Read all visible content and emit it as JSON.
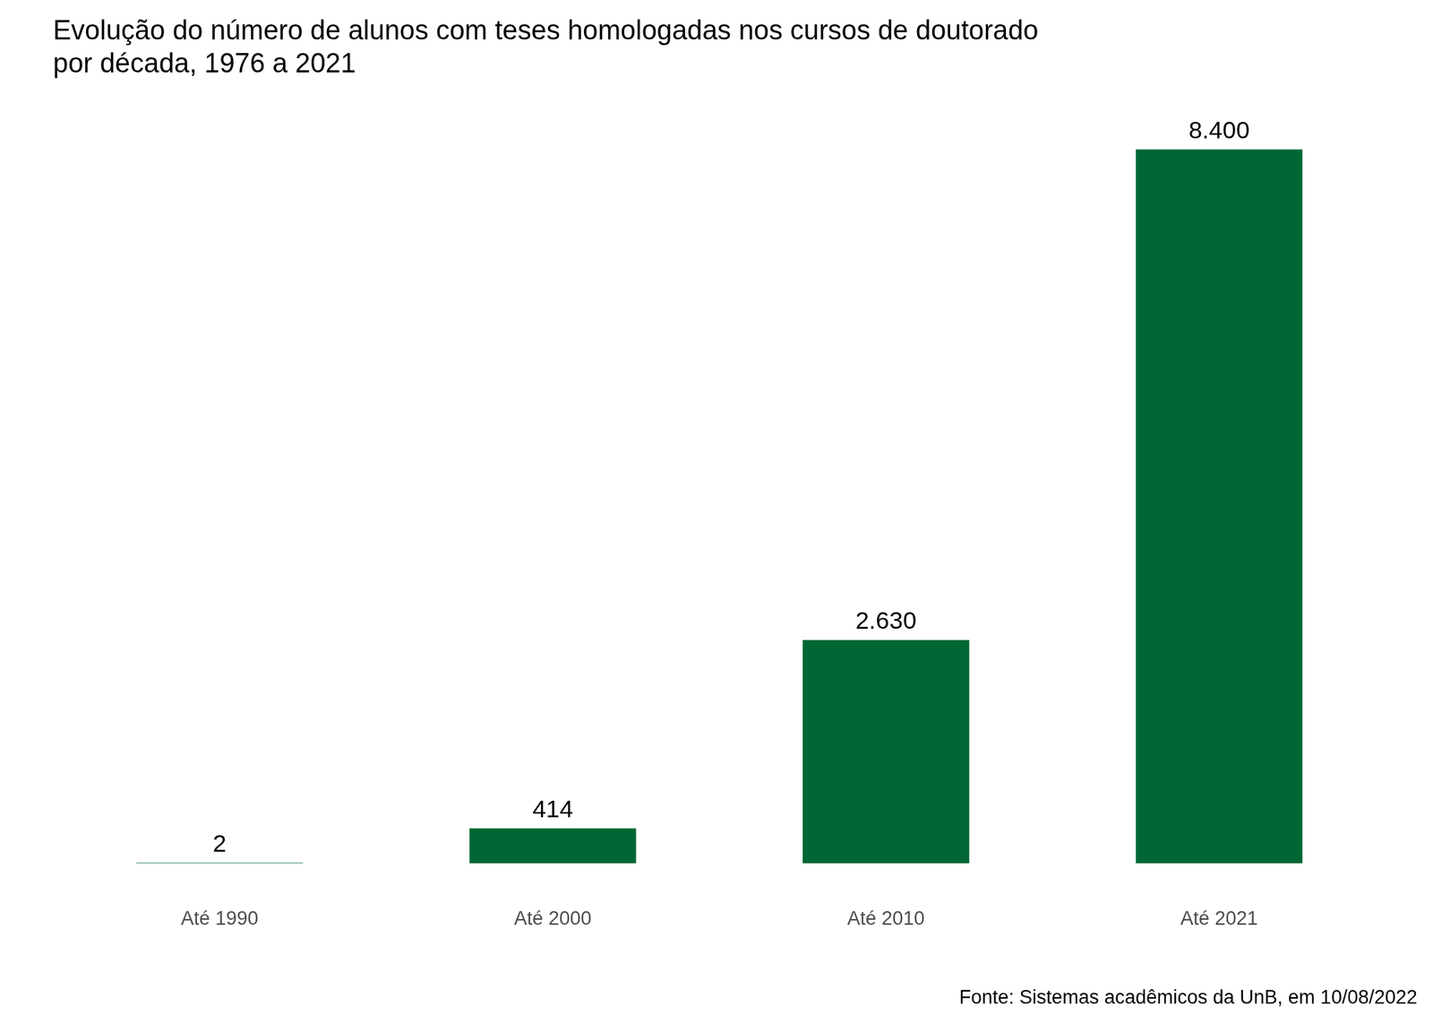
{
  "chart_data": {
    "type": "bar",
    "title": [
      "Evolução do número de alunos com teses homologadas nos cursos de doutorado",
      "por década, 1976 a 2021"
    ],
    "categories": [
      "Até 1990",
      "Até 2000",
      "Até 2010",
      "Até 2021"
    ],
    "values": [
      2,
      414,
      2630,
      8400
    ],
    "value_labels": [
      "2",
      "414",
      "2.630",
      "8.400"
    ],
    "color": "#006633",
    "ylim": [
      0,
      8400
    ],
    "grid": false,
    "data_labels": true,
    "tick_labels": "x",
    "source": "Fonte: Sistemas acadêmicos da UnB, em 10/08/2022"
  }
}
